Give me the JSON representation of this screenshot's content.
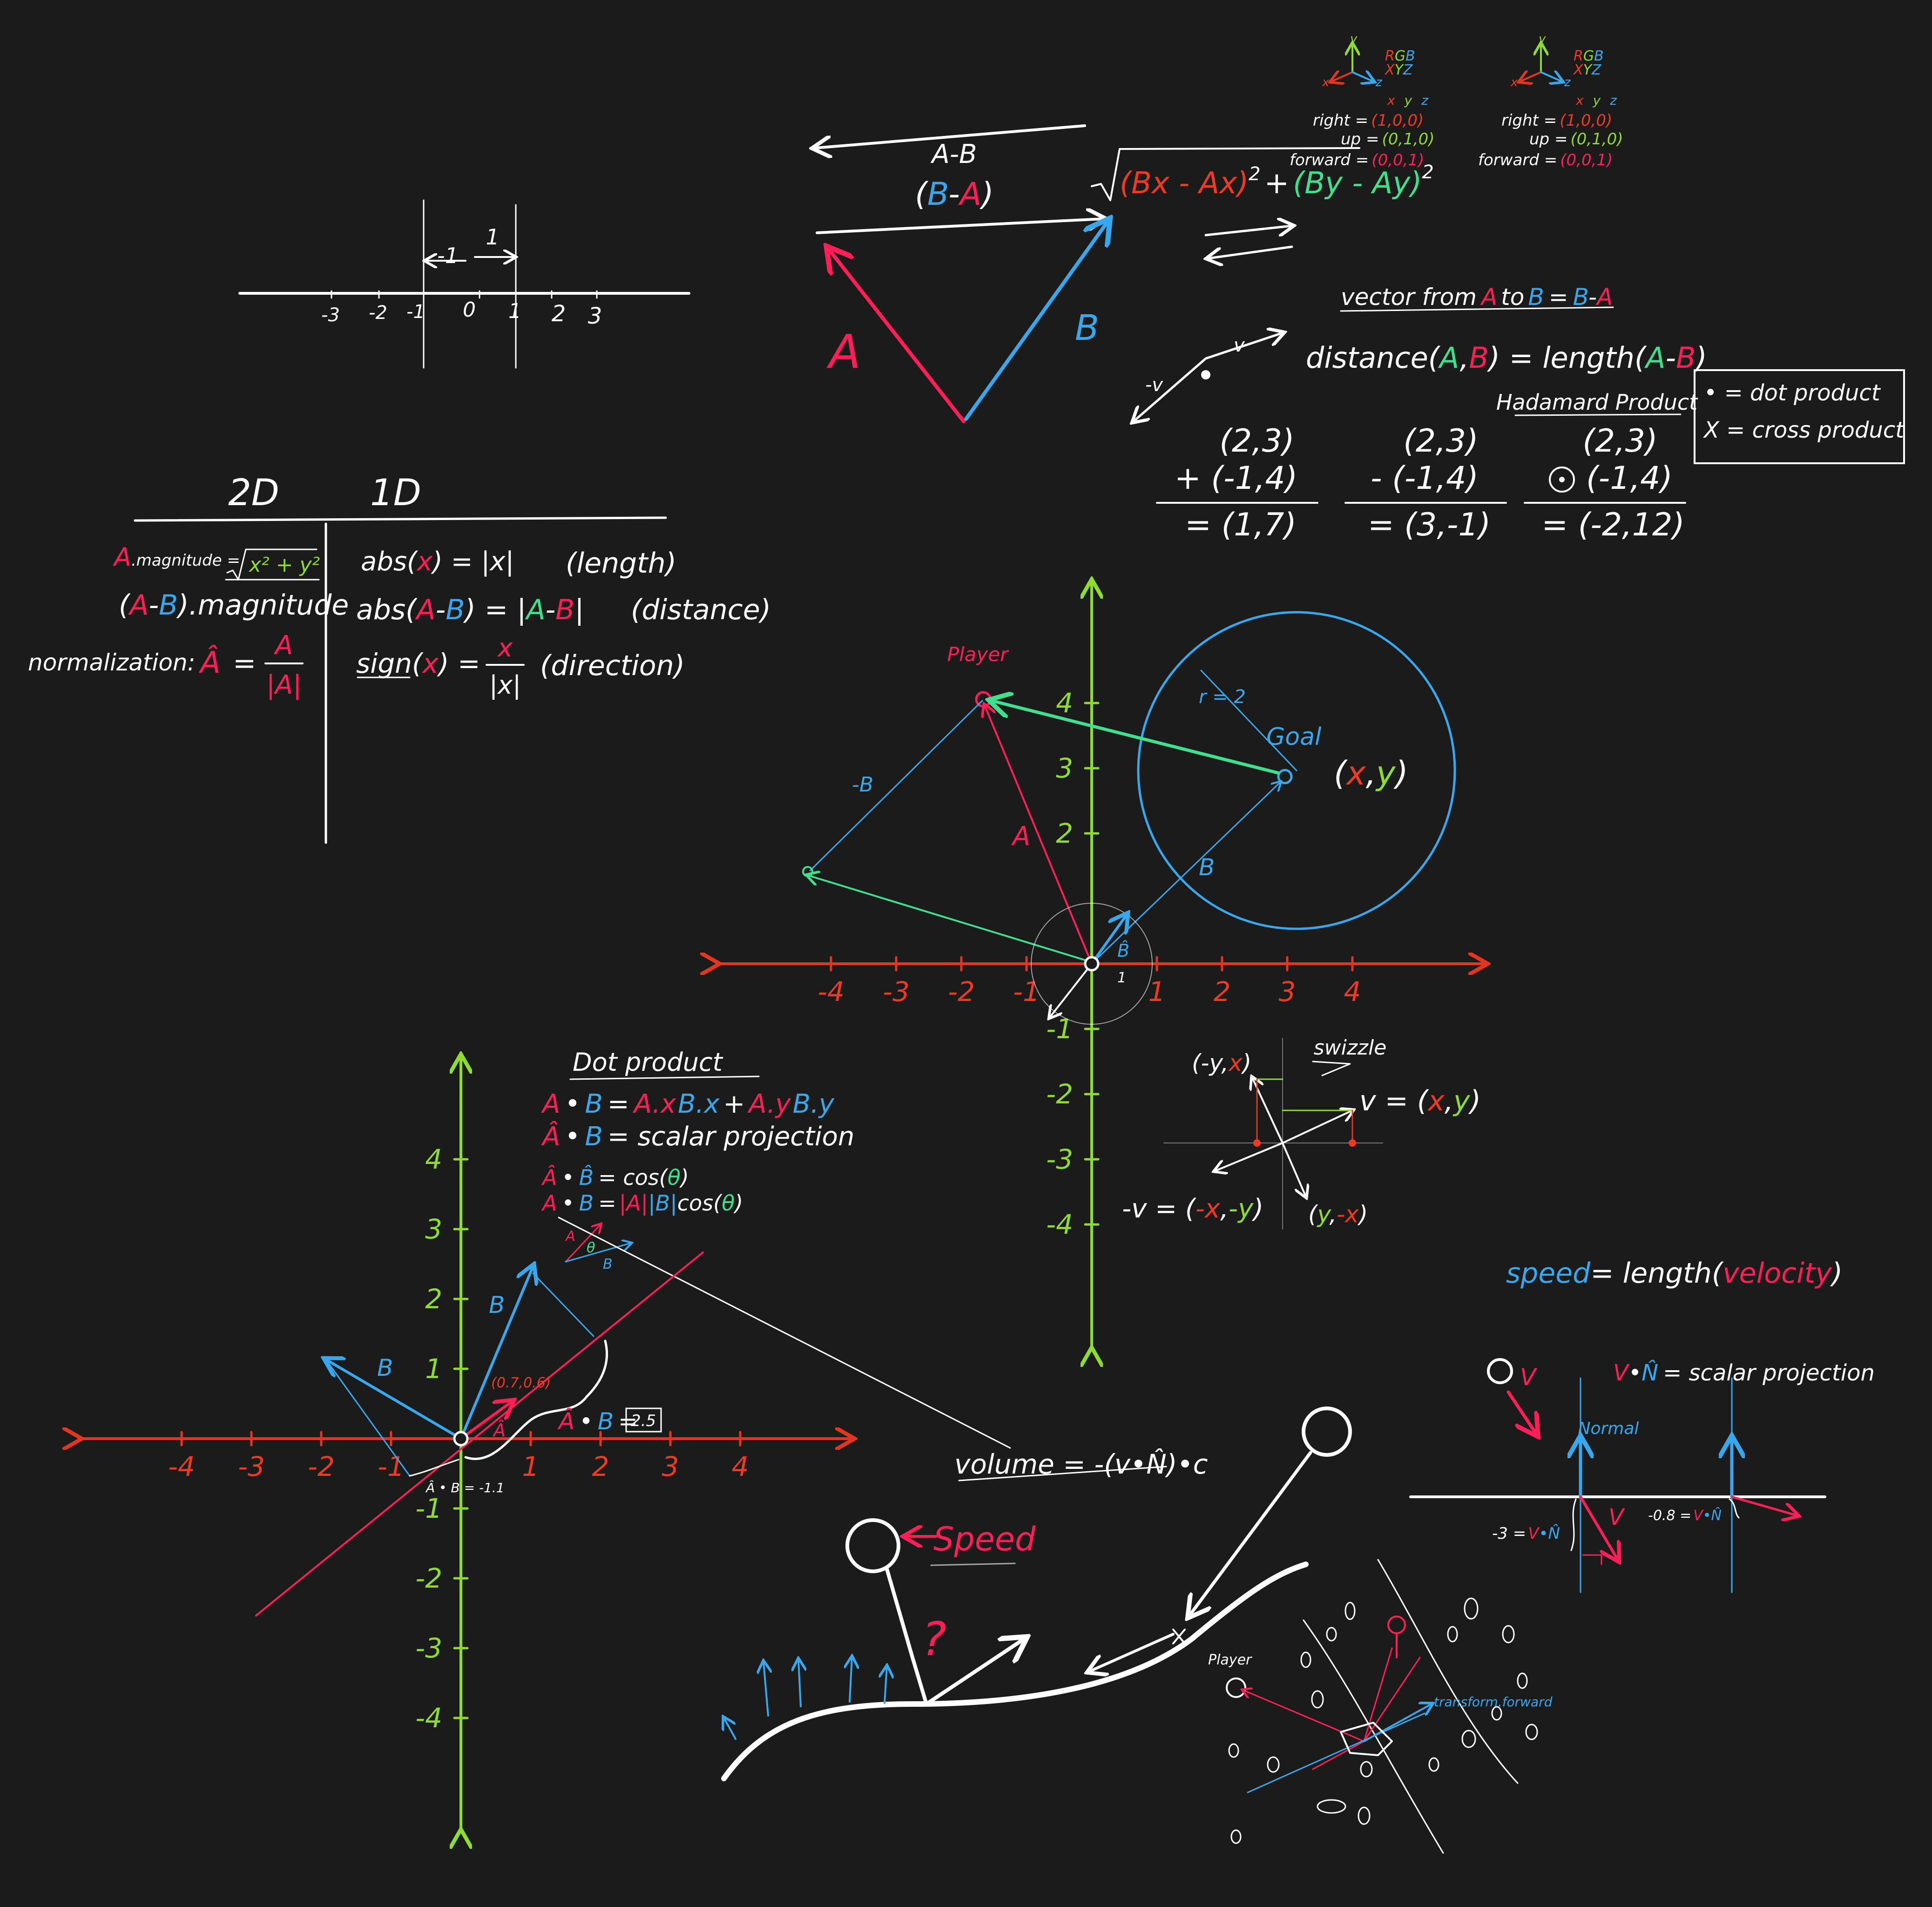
{
  "colors": {
    "background": "#1b1b1b",
    "white": "#ffffff",
    "red": "#ff1e55",
    "blue": "#38a8ee",
    "green": "#3ee08e",
    "orange": "#ee3a22",
    "lime": "#8edc2c"
  },
  "numberline": {
    "ticks": [
      "-3",
      "-2",
      "-1",
      "0",
      "1",
      "2",
      "3"
    ],
    "left_span": "-1",
    "right_span": "1"
  },
  "vec_sub": {
    "label_AB": "A-B",
    "label_BA_B": "B",
    "label_BA_dash": "-",
    "label_BA_A": "A",
    "label_A": "A",
    "label_B": "B",
    "sqrt_bx": "Bx - Ax",
    "sqrt_by": "By - Ay",
    "sqrt_plus": "+",
    "sq": "2"
  },
  "axes_legends": [
    {
      "y": "y",
      "x": "x",
      "z": "z",
      "rgb_r": "R",
      "rgb_g": "G",
      "rgb_b": "B",
      "xyz_x": "X",
      "xyz_y": "Y",
      "xyz_z": "Z",
      "col_x": "x",
      "col_y": "y",
      "col_z": "z",
      "right_label": "right =",
      "right_val": "(1,0,0)",
      "up_label": "up =",
      "up_val": "(0,1,0)",
      "forward_label": "forward =",
      "forward_val": "(0,0,1)"
    },
    {
      "y": "y",
      "x": "x",
      "z": "z",
      "rgb_r": "R",
      "rgb_g": "G",
      "rgb_b": "B",
      "xyz_x": "X",
      "xyz_y": "Y",
      "xyz_z": "Z",
      "col_x": "x",
      "col_y": "y",
      "col_z": "z",
      "right_label": "right =",
      "right_val": "(1,0,0)",
      "up_label": "up =",
      "up_val": "(0,1,0)",
      "forward_label": "forward =",
      "forward_val": "(0,0,1)"
    }
  ],
  "vector_def": {
    "prefix": "vector from",
    "a": "A",
    "to": "to",
    "b": "B",
    "eq": "=",
    "rhs_b": "B",
    "rhs_dash": "-",
    "rhs_a": "A"
  },
  "distance": {
    "text": "distance",
    "open": "(",
    "a": "A",
    "comma": ",",
    "b": "B",
    "close": ") = length(",
    "sub_a": "A",
    "sub_dash": "-",
    "sub_b": "B",
    "end": ")",
    "v": "v",
    "neg_v": "-v"
  },
  "arith": {
    "add_top": "(2,3)",
    "add_mid": "+ (-1,4)",
    "add_res": "= (1,7)",
    "sub_top": "(2,3)",
    "sub_mid": "- (-1,4)",
    "sub_res": "= (3,-1)",
    "had_title": "Hadamard Product",
    "had_top": "(2,3)",
    "had_mid": "(-1,4)",
    "had_res": "= (-2,12)"
  },
  "legend_box": {
    "dot_line": "• = dot product",
    "cross_line": "X = cross product"
  },
  "table": {
    "col_2d": "2D",
    "col_1d": "1D",
    "mag_a": "A",
    "mag_label": ".magnitude =",
    "mag_formula": "x² + y²",
    "ab_open": "(",
    "ab_a": "A",
    "ab_dash": "-",
    "ab_b": "B",
    "ab_rest": ").magnitude",
    "norm_label": "normalization:",
    "norm_hat": "Â",
    "norm_eq": "=",
    "norm_num": "A",
    "norm_den": "|A|",
    "abs_pre": "abs(",
    "abs_x": "x",
    "abs_post": ") = |x|",
    "abs_note": "(length)",
    "absab_pre": "abs(",
    "absab_a": "A",
    "absab_dash": "-",
    "absab_b": "B",
    "absab_mid": ") = |",
    "absab_a2": "A",
    "absab_dash2": "-",
    "absab_b2": "B",
    "absab_end": "|",
    "absab_note": "(distance)",
    "sign_pre": "sign(",
    "sign_x": "x",
    "sign_post": ") =",
    "sign_num": "x",
    "sign_den": "|x|",
    "sign_note": "(direction)"
  },
  "center_plot": {
    "x_ticks": [
      "-4",
      "-3",
      "-2",
      "-1",
      "1",
      "2",
      "3",
      "4"
    ],
    "y_ticks": [
      "4",
      "3",
      "2",
      "-1",
      "-2",
      "-3",
      "-4"
    ],
    "player": "Player",
    "goal": "Goal",
    "goal_xy_open": "(",
    "goal_xy_x": "x",
    "goal_xy_comma": ",",
    "goal_xy_y": "y",
    "goal_xy_close": ")",
    "radius": "r = 2",
    "neg_b": "-B",
    "a": "A",
    "b": "B",
    "b_hat": "B̂",
    "unit": "1",
    "swizzle": "swizzle",
    "sw_nyx_open": "(-y,",
    "sw_nyx_x": "x",
    "sw_nyx_close": ")",
    "sw_v_pre": "v = (",
    "sw_v_x": "x",
    "sw_v_comma": ",",
    "sw_v_y": "y",
    "sw_v_close": ")",
    "sw_negv_pre": "-v = (",
    "sw_negv_x": "-x",
    "sw_negv_comma": ",",
    "sw_negv_y": "-y",
    "sw_negv_close": ")",
    "sw_ynx_open": "(",
    "sw_ynx_y": "y",
    "sw_ynx_comma": ",",
    "sw_ynx_x": "-x",
    "sw_ynx_close": ")"
  },
  "dot": {
    "title": "Dot product",
    "l1_a": "A",
    "l1_dot": "•",
    "l1_b": "B",
    "l1_eq": "=",
    "l1_ax": "A.x",
    "l1_bx": "B.x",
    "l1_plus": "+",
    "l1_ay": "A.y",
    "l1_by": "B.y",
    "l2_a": "Â",
    "l2_dot": "•",
    "l2_b": "B",
    "l2_rest": "= scalar projection",
    "l3_a": "Â",
    "l3_dot": "•",
    "l3_b": "B̂",
    "l3_eq": "= cos(",
    "l3_theta": "θ",
    "l3_close": ")",
    "l4_a": "A",
    "l4_dot": "•",
    "l4_b": "B",
    "l4_eq": "=",
    "l4_ma": "|A|",
    "l4_mb": "|B|",
    "l4_cos": "cos(",
    "l4_theta": "θ",
    "l4_close": ")",
    "small_a": "A",
    "small_theta": "θ",
    "small_b": "B"
  },
  "lower_plot": {
    "x_ticks": [
      "-4",
      "-3",
      "-2",
      "-1",
      "1",
      "2",
      "3",
      "4"
    ],
    "y_ticks": [
      "4",
      "3",
      "2",
      "1",
      "-1",
      "-2",
      "-3",
      "-4"
    ],
    "b": "B",
    "b2": "B",
    "a_hat": "Â",
    "point": "(0.7,0.6)",
    "proj_a": "Â",
    "proj_dot": "•",
    "proj_b": "B",
    "proj_eq": "=",
    "proj_val": "2.5",
    "neg_proj": "Â • B = -1.1"
  },
  "speed": {
    "s": "speed",
    "eq": "= length(",
    "vel": "velocity",
    "close": ")"
  },
  "volume": "volume = -(v•N̂)•c",
  "speed_label": "Speed",
  "question": "?",
  "normal_panel": {
    "v": "V",
    "formula_v": "V",
    "formula_dot": "•",
    "formula_n": "N̂",
    "formula_rest": "= scalar projection",
    "normal": "Normal",
    "v_low": "V",
    "left_val_pre": "-3 =",
    "left_v": "V",
    "left_n": "•N̂",
    "right_val_pre": "-0.8 =",
    "right_v": "V",
    "right_n": "•N̂"
  },
  "asteroid": {
    "player": "Player",
    "forward": "transform.forward"
  }
}
